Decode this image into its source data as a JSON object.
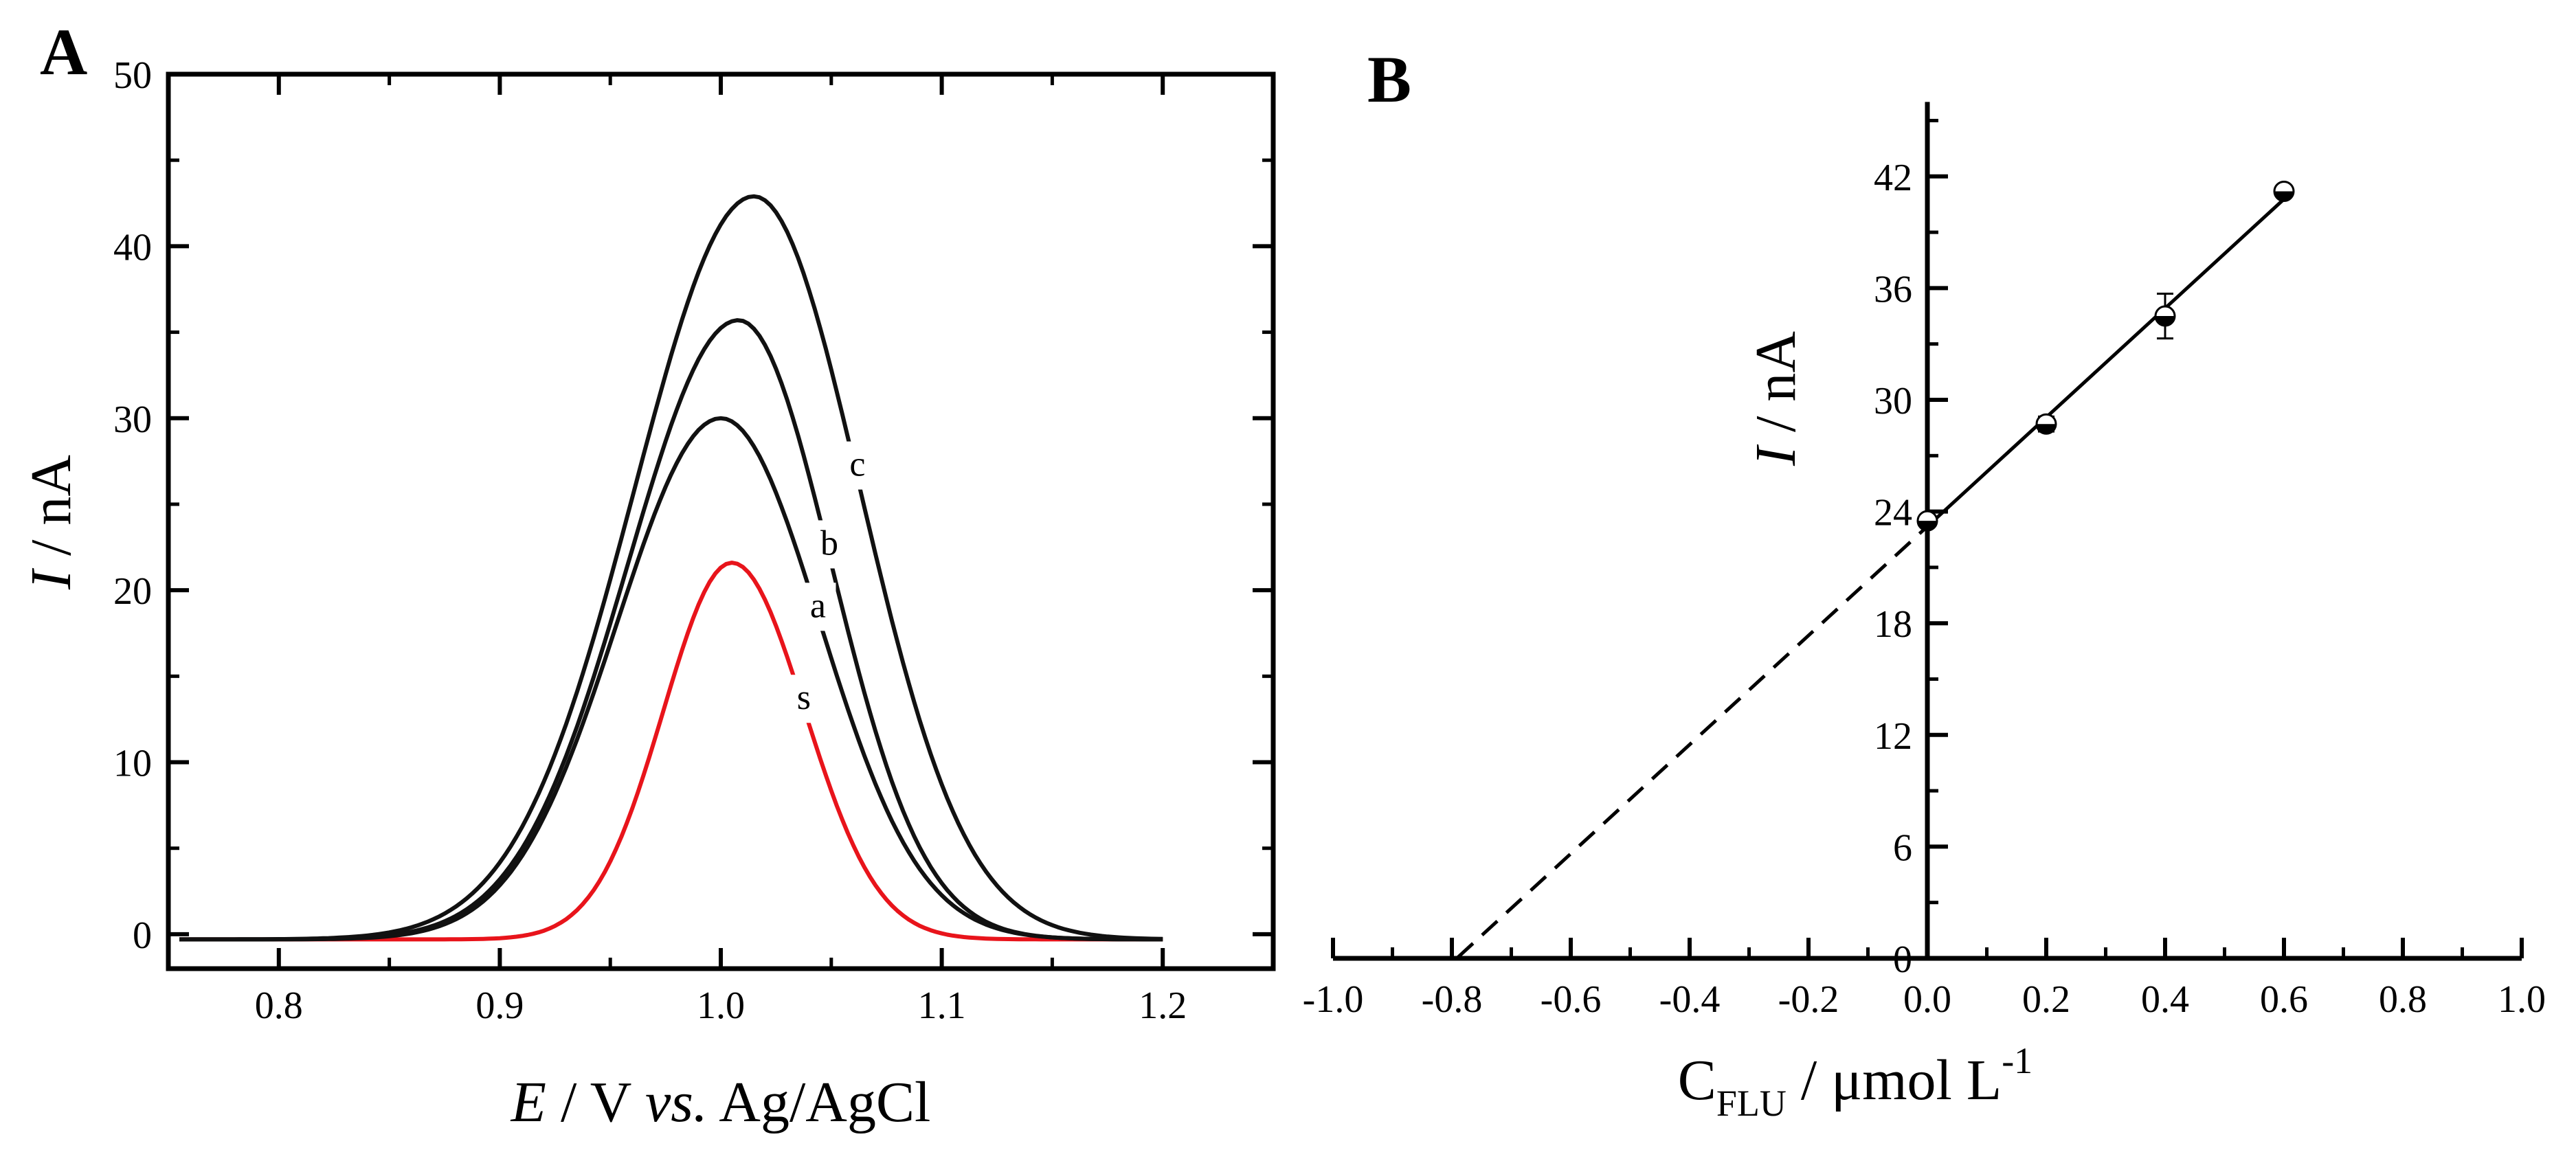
{
  "chart_data": [
    {
      "panel": "A",
      "type": "line",
      "xlabel_parts": [
        "E",
        " / V ",
        "vs.",
        " Ag/AgCl"
      ],
      "ylabel_parts": [
        "I",
        " / nA"
      ],
      "xlim": [
        0.75,
        1.25
      ],
      "ylim": [
        -2,
        50
      ],
      "xticks": [
        0.8,
        0.9,
        1.0,
        1.1,
        1.2
      ],
      "xtick_labels": [
        "0.8",
        "0.9",
        "1.0",
        "1.1",
        "1.2"
      ],
      "yticks": [
        0,
        10,
        20,
        30,
        40,
        50
      ],
      "ytick_labels": [
        "0",
        "10",
        "20",
        "30",
        "40",
        "50"
      ],
      "series": [
        {
          "label": "s",
          "color": "#e8141b",
          "baseline": -0.3,
          "amplitude": 21.9,
          "center": 1.005,
          "sigma_left": 0.031,
          "sigma_right": 0.033
        },
        {
          "label": "a",
          "color": "#111111",
          "baseline": -0.3,
          "amplitude": 30.3,
          "center": 1.0,
          "sigma_left": 0.047,
          "sigma_right": 0.045
        },
        {
          "label": "b",
          "color": "#111111",
          "baseline": -0.3,
          "amplitude": 36.0,
          "center": 1.008,
          "sigma_left": 0.05,
          "sigma_right": 0.042
        },
        {
          "label": "c",
          "color": "#111111",
          "baseline": -0.3,
          "amplitude": 43.2,
          "center": 1.015,
          "sigma_left": 0.054,
          "sigma_right": 0.048
        }
      ]
    },
    {
      "panel": "B",
      "type": "scatter",
      "xlabel_parts": [
        "C",
        "FLU",
        " / μmol L",
        "-1"
      ],
      "ylabel_parts": [
        "I",
        " / nA"
      ],
      "xlim": [
        -1.0,
        1.0
      ],
      "ylim": [
        0,
        46
      ],
      "xticks": [
        -1.0,
        -0.8,
        -0.6,
        -0.4,
        -0.2,
        0.0,
        0.2,
        0.4,
        0.6,
        0.8,
        1.0
      ],
      "xtick_labels": [
        "-1.0",
        "-0.8",
        "-0.6",
        "-0.4",
        "-0.2",
        "0.0",
        "0.2",
        "0.4",
        "0.6",
        "0.8",
        "1.0"
      ],
      "yticks": [
        0,
        6,
        12,
        18,
        24,
        30,
        36,
        42
      ],
      "ytick_labels": [
        "0",
        "6",
        "12",
        "18",
        "24",
        "30",
        "36",
        "42"
      ],
      "points": [
        {
          "x": 0.0,
          "y": 23.5,
          "err": 0.3
        },
        {
          "x": 0.2,
          "y": 28.7,
          "err": 0.4
        },
        {
          "x": 0.4,
          "y": 34.5,
          "err": 1.2
        },
        {
          "x": 0.6,
          "y": 41.2,
          "err": 0.3
        }
      ],
      "fit": {
        "slope": 29.3,
        "intercept": 23.2,
        "x_from": -0.79,
        "x_to": 0.6,
        "dashed_below_x": 0.0
      }
    }
  ]
}
